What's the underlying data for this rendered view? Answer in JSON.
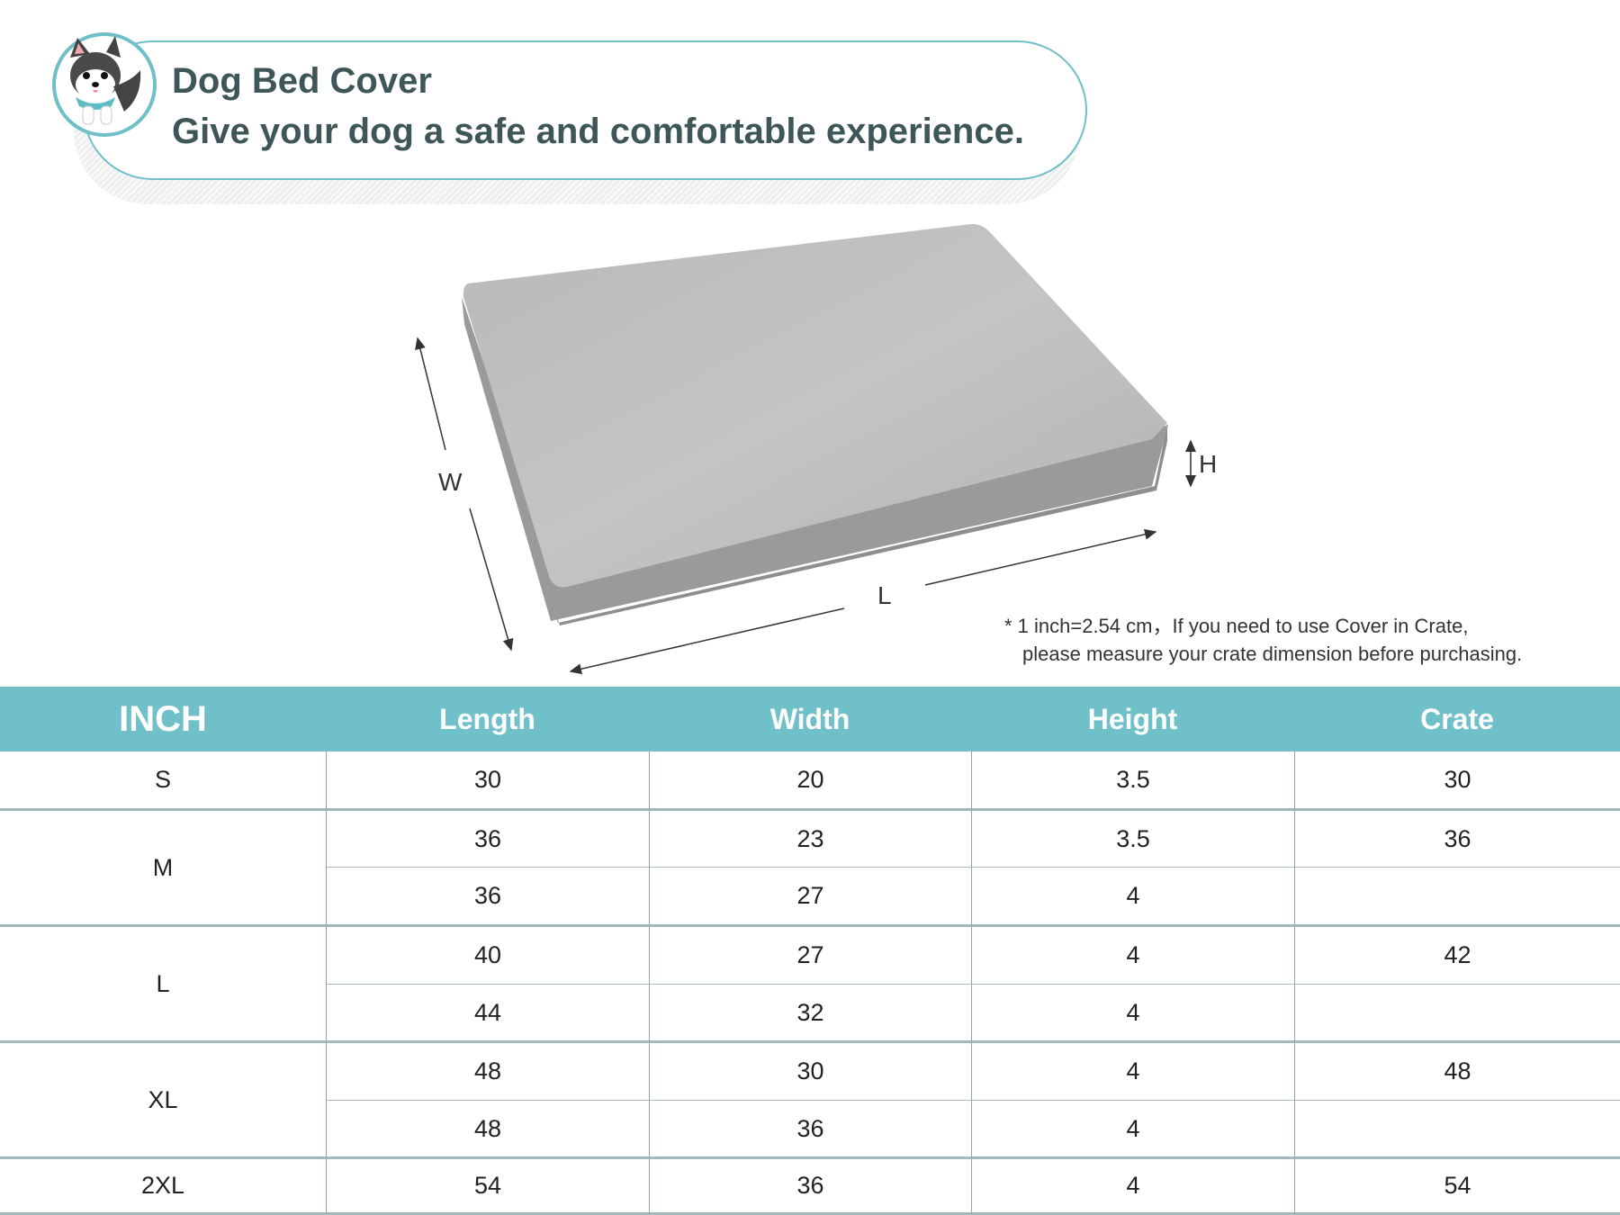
{
  "banner": {
    "title": "Dog Bed Cover",
    "subtitle": "Give your dog a safe and comfortable experience.",
    "mascot_icon": "husky-dog-icon",
    "accent_color": "#6fbfc6",
    "text_color": "#3f5658"
  },
  "diagram": {
    "labels": {
      "width": "W",
      "length": "L",
      "height": "H"
    },
    "note_line1": "* 1 inch=2.54 cm，If you need to use Cover in Crate,",
    "note_line2": "please measure your crate dimension before purchasing."
  },
  "table": {
    "header_color": "#6fc0c8",
    "headers": [
      "INCH",
      "Length",
      "Width",
      "Height",
      "Crate"
    ],
    "groups": [
      {
        "size": "S",
        "crate": "30",
        "rows": [
          {
            "length": "30",
            "width": "20",
            "height": "3.5"
          }
        ]
      },
      {
        "size": "M",
        "crate": "36",
        "rows": [
          {
            "length": "36",
            "width": "23",
            "height": "3.5"
          },
          {
            "length": "36",
            "width": "27",
            "height": "4"
          }
        ]
      },
      {
        "size": "L",
        "crate": "42",
        "rows": [
          {
            "length": "40",
            "width": "27",
            "height": "4"
          },
          {
            "length": "44",
            "width": "32",
            "height": "4"
          }
        ]
      },
      {
        "size": "XL",
        "crate": "48",
        "rows": [
          {
            "length": "48",
            "width": "30",
            "height": "4"
          },
          {
            "length": "48",
            "width": "36",
            "height": "4"
          }
        ]
      },
      {
        "size": "2XL",
        "crate": "54",
        "rows": [
          {
            "length": "54",
            "width": "36",
            "height": "4"
          }
        ]
      }
    ]
  }
}
